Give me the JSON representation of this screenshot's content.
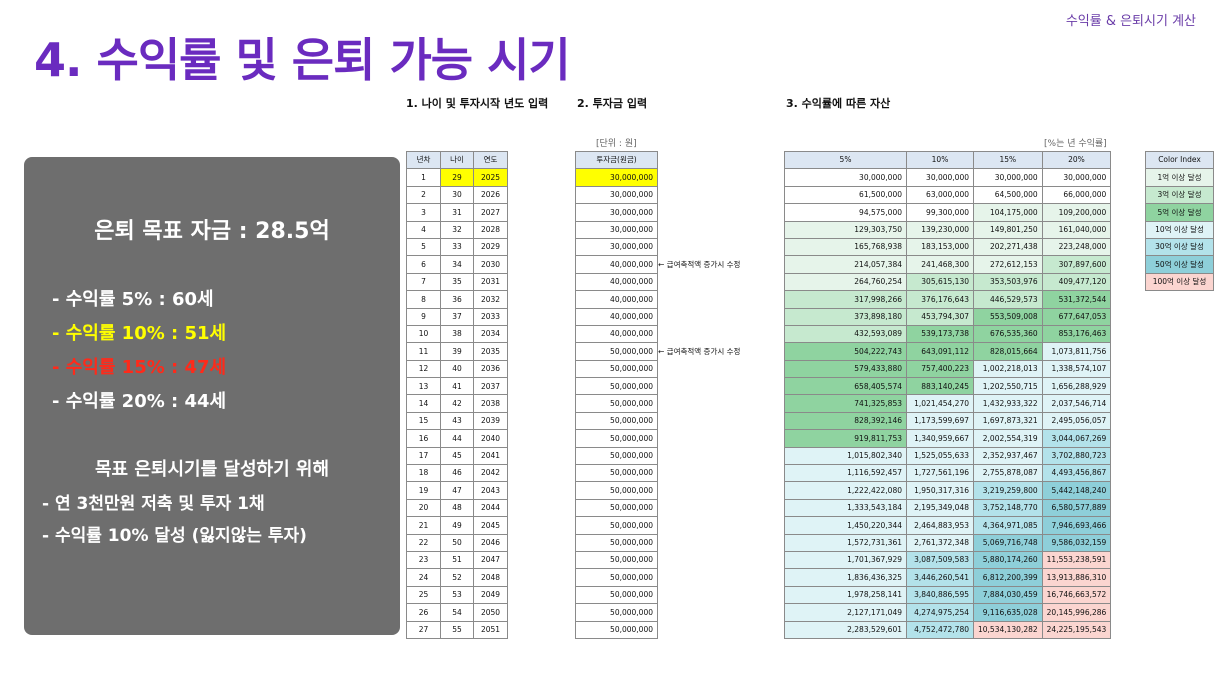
{
  "header": {
    "corner_tag": "수익률 & 은퇴시기 계산",
    "title": "4. 수익률 및 은퇴 가능 시기"
  },
  "summary": {
    "goal": "은퇴 목표 자금 : 28.5억",
    "rates": [
      {
        "text": "- 수익률  5% : 60세",
        "color": "#ffffff"
      },
      {
        "text": "- 수익률 10% : 51세",
        "color": "#ffff00"
      },
      {
        "text": "- 수익률 15% : 47세",
        "color": "#ff2a1a"
      },
      {
        "text": "- 수익률 20% : 44세",
        "color": "#ffffff"
      }
    ],
    "strategy_heading": "목표 은퇴시기를 달성하기 위해",
    "strategy_items": [
      "- 연 3천만원 저축 및 투자 1채",
      "- 수익률 10% 달성 (잃지않는 투자)"
    ]
  },
  "sections": {
    "age": "1. 나이 및 투자시작 년도 입력",
    "invest": "2. 투자금 입력",
    "asset": "3. 수익률에 따른 자산"
  },
  "units": {
    "invest": "[단위 : 원]",
    "asset": "[%는 년 수익률]"
  },
  "age_table": {
    "headers": [
      "년차",
      "나이",
      "연도"
    ],
    "rows": [
      [
        "1",
        "29",
        "2025"
      ],
      [
        "2",
        "30",
        "2026"
      ],
      [
        "3",
        "31",
        "2027"
      ],
      [
        "4",
        "32",
        "2028"
      ],
      [
        "5",
        "33",
        "2029"
      ],
      [
        "6",
        "34",
        "2030"
      ],
      [
        "7",
        "35",
        "2031"
      ],
      [
        "8",
        "36",
        "2032"
      ],
      [
        "9",
        "37",
        "2033"
      ],
      [
        "10",
        "38",
        "2034"
      ],
      [
        "11",
        "39",
        "2035"
      ],
      [
        "12",
        "40",
        "2036"
      ],
      [
        "13",
        "41",
        "2037"
      ],
      [
        "14",
        "42",
        "2038"
      ],
      [
        "15",
        "43",
        "2039"
      ],
      [
        "16",
        "44",
        "2040"
      ],
      [
        "17",
        "45",
        "2041"
      ],
      [
        "18",
        "46",
        "2042"
      ],
      [
        "19",
        "47",
        "2043"
      ],
      [
        "20",
        "48",
        "2044"
      ],
      [
        "21",
        "49",
        "2045"
      ],
      [
        "22",
        "50",
        "2046"
      ],
      [
        "23",
        "51",
        "2047"
      ],
      [
        "24",
        "52",
        "2048"
      ],
      [
        "25",
        "53",
        "2049"
      ],
      [
        "26",
        "54",
        "2050"
      ],
      [
        "27",
        "55",
        "2051"
      ]
    ]
  },
  "invest_table": {
    "header": "투자금(원금)",
    "rows": [
      "30,000,000",
      "30,000,000",
      "30,000,000",
      "30,000,000",
      "30,000,000",
      "40,000,000",
      "40,000,000",
      "40,000,000",
      "40,000,000",
      "40,000,000",
      "50,000,000",
      "50,000,000",
      "50,000,000",
      "50,000,000",
      "50,000,000",
      "50,000,000",
      "50,000,000",
      "50,000,000",
      "50,000,000",
      "50,000,000",
      "50,000,000",
      "50,000,000",
      "50,000,000",
      "50,000,000",
      "50,000,000",
      "50,000,000",
      "50,000,000"
    ],
    "notes": [
      {
        "row": 6,
        "text": "← 급여축적액 증가시 수정"
      },
      {
        "row": 11,
        "text": "← 급여축적액 증가시 수정"
      }
    ]
  },
  "asset_table": {
    "headers": [
      "5%",
      "10%",
      "15%",
      "20%"
    ],
    "rows": [
      [
        "30,000,000",
        "30,000,000",
        "30,000,000",
        "30,000,000"
      ],
      [
        "61,500,000",
        "63,000,000",
        "64,500,000",
        "66,000,000"
      ],
      [
        "94,575,000",
        "99,300,000",
        "104,175,000",
        "109,200,000"
      ],
      [
        "129,303,750",
        "139,230,000",
        "149,801,250",
        "161,040,000"
      ],
      [
        "165,768,938",
        "183,153,000",
        "202,271,438",
        "223,248,000"
      ],
      [
        "214,057,384",
        "241,468,300",
        "272,612,153",
        "307,897,600"
      ],
      [
        "264,760,254",
        "305,615,130",
        "353,503,976",
        "409,477,120"
      ],
      [
        "317,998,266",
        "376,176,643",
        "446,529,573",
        "531,372,544"
      ],
      [
        "373,898,180",
        "453,794,307",
        "553,509,008",
        "677,647,053"
      ],
      [
        "432,593,089",
        "539,173,738",
        "676,535,360",
        "853,176,463"
      ],
      [
        "504,222,743",
        "643,091,112",
        "828,015,664",
        "1,073,811,756"
      ],
      [
        "579,433,880",
        "757,400,223",
        "1,002,218,013",
        "1,338,574,107"
      ],
      [
        "658,405,574",
        "883,140,245",
        "1,202,550,715",
        "1,656,288,929"
      ],
      [
        "741,325,853",
        "1,021,454,270",
        "1,432,933,322",
        "2,037,546,714"
      ],
      [
        "828,392,146",
        "1,173,599,697",
        "1,697,873,321",
        "2,495,056,057"
      ],
      [
        "919,811,753",
        "1,340,959,667",
        "2,002,554,319",
        "3,044,067,269"
      ],
      [
        "1,015,802,340",
        "1,525,055,633",
        "2,352,937,467",
        "3,702,880,723"
      ],
      [
        "1,116,592,457",
        "1,727,561,196",
        "2,755,878,087",
        "4,493,456,867"
      ],
      [
        "1,222,422,080",
        "1,950,317,316",
        "3,219,259,800",
        "5,442,148,240"
      ],
      [
        "1,333,543,184",
        "2,195,349,048",
        "3,752,148,770",
        "6,580,577,889"
      ],
      [
        "1,450,220,344",
        "2,464,883,953",
        "4,364,971,085",
        "7,946,693,466"
      ],
      [
        "1,572,731,361",
        "2,761,372,348",
        "5,069,716,748",
        "9,586,032,159"
      ],
      [
        "1,701,367,929",
        "3,087,509,583",
        "5,880,174,260",
        "11,553,238,591"
      ],
      [
        "1,836,436,325",
        "3,446,260,541",
        "6,812,200,399",
        "13,913,886,310"
      ],
      [
        "1,978,258,141",
        "3,840,886,595",
        "7,884,030,459",
        "16,746,663,572"
      ],
      [
        "2,127,171,049",
        "4,274,975,254",
        "9,116,635,028",
        "20,145,996,286"
      ],
      [
        "2,283,529,601",
        "4,752,472,780",
        "10,534,130,282",
        "24,225,195,543"
      ]
    ]
  },
  "legend": {
    "header": "Color Index",
    "items": [
      {
        "label": "1억 이상 달성",
        "color": "#e6f4ea"
      },
      {
        "label": "3억 이상 달성",
        "color": "#c6e9cf"
      },
      {
        "label": "5억 이상 달성",
        "color": "#8fd3a0"
      },
      {
        "label": "10억 이상 달성",
        "color": "#dff3f6"
      },
      {
        "label": "30억 이상 달성",
        "color": "#b3e2ea"
      },
      {
        "label": "50억 이상 달성",
        "color": "#8ecfd9"
      },
      {
        "label": "100억 이상 달성",
        "color": "#fbd5d0"
      }
    ]
  }
}
